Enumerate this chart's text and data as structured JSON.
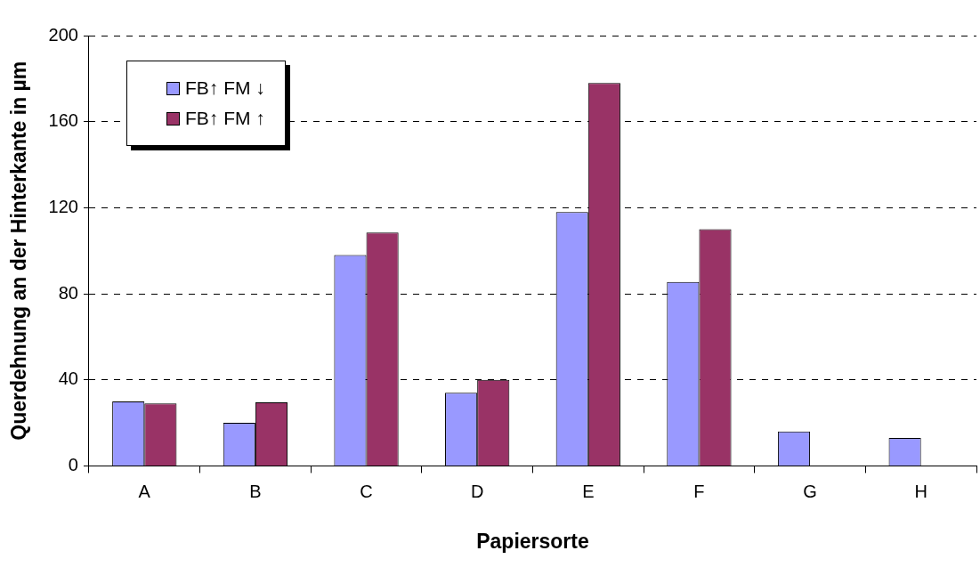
{
  "chart_data": {
    "type": "bar",
    "xlabel": "Papiersorte",
    "ylabel": "Querdehnung an der Hinterkante in µm",
    "categories": [
      "A",
      "B",
      "C",
      "D",
      "E",
      "F",
      "G",
      "H"
    ],
    "series": [
      {
        "name": "FB↑ FM ↓",
        "color": "#9999ff",
        "values": [
          30,
          20,
          98,
          34,
          118,
          85.5,
          16,
          13
        ]
      },
      {
        "name": "FB↑ FM ↑",
        "color": "#993366",
        "values": [
          29,
          29.5,
          108.5,
          40,
          178,
          110,
          null,
          null
        ]
      }
    ],
    "ylim": [
      0,
      200
    ],
    "yticks": [
      0,
      40,
      80,
      120,
      160,
      200
    ],
    "grid": "y",
    "legend": "top left"
  }
}
